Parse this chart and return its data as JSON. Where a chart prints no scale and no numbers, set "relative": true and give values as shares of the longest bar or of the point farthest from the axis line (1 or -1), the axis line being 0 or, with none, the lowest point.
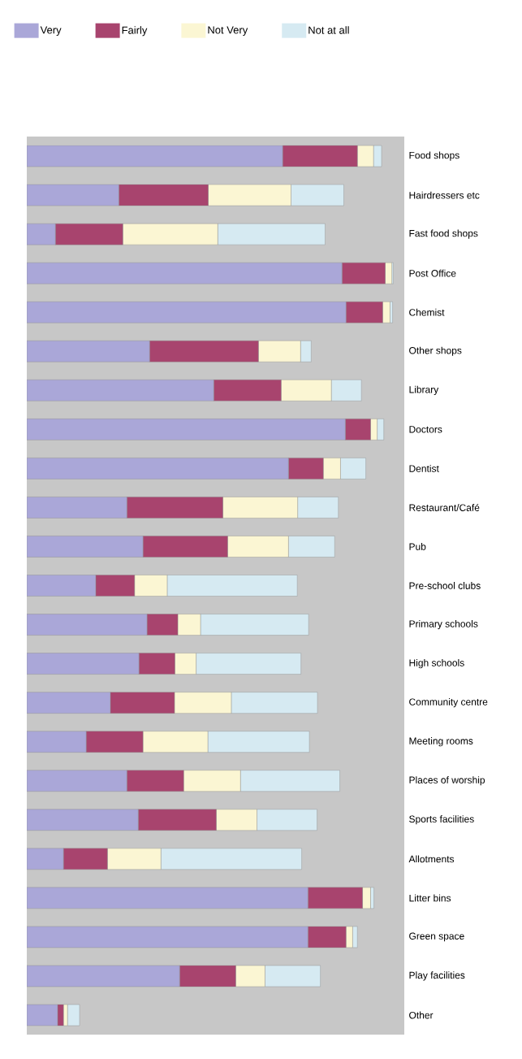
{
  "chart_data": {
    "type": "bar",
    "orientation": "horizontal",
    "stacked": true,
    "relative": true,
    "legend": "top",
    "categories": [
      "Food shops",
      "Hairdressers etc",
      "Fast food shops",
      "Post Office",
      "Chemist",
      "Other shops",
      "Library",
      "Doctors",
      "Dentist",
      "Restaurant/Café",
      "Pub",
      "Pre-school clubs",
      "Primary schools",
      "High schools",
      "Community centre",
      "Meeting rooms",
      "Places of worship",
      "Sports facilities",
      "Allotments",
      "Litter bins",
      "Green space",
      "Play facilities",
      "Other"
    ],
    "series": [
      {
        "name": "Very",
        "color": "#aaa7d8",
        "values": [
          0.698,
          0.251,
          0.078,
          0.86,
          0.871,
          0.335,
          0.51,
          0.869,
          0.714,
          0.273,
          0.317,
          0.188,
          0.328,
          0.306,
          0.228,
          0.162,
          0.273,
          0.304,
          0.1,
          0.767,
          0.767,
          0.417,
          0.084
        ]
      },
      {
        "name": "Fairly",
        "color": "#a8446e",
        "values": [
          0.204,
          0.244,
          0.184,
          0.118,
          0.1,
          0.297,
          0.184,
          0.069,
          0.095,
          0.262,
          0.231,
          0.106,
          0.084,
          0.098,
          0.175,
          0.155,
          0.155,
          0.213,
          0.12,
          0.149,
          0.104,
          0.153,
          0.016
        ]
      },
      {
        "name": "Not Very",
        "color": "#fbf6d3",
        "values": [
          0.044,
          0.226,
          0.259,
          0.018,
          0.02,
          0.115,
          0.137,
          0.018,
          0.047,
          0.204,
          0.166,
          0.089,
          0.062,
          0.058,
          0.155,
          0.177,
          0.155,
          0.111,
          0.146,
          0.022,
          0.018,
          0.08,
          0.011
        ]
      },
      {
        "name": "Not at all",
        "color": "#d6eaf2",
        "values": [
          0.022,
          0.144,
          0.293,
          0.004,
          0.007,
          0.029,
          0.082,
          0.018,
          0.069,
          0.111,
          0.126,
          0.355,
          0.295,
          0.286,
          0.235,
          0.277,
          0.271,
          0.164,
          0.384,
          0.009,
          0.013,
          0.151,
          0.033
        ]
      }
    ]
  }
}
